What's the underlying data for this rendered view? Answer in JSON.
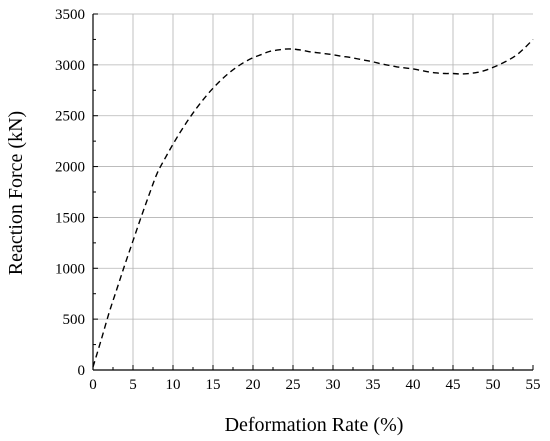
{
  "chart_data": {
    "type": "line",
    "xlabel": "Deformation Rate (%)",
    "ylabel": "Reaction Force (kN)",
    "xlim": [
      0,
      55
    ],
    "ylim": [
      0,
      3500
    ],
    "x_ticks": [
      0,
      5,
      10,
      15,
      20,
      25,
      30,
      35,
      40,
      45,
      50,
      55
    ],
    "y_ticks": [
      0,
      500,
      1000,
      1500,
      2000,
      2500,
      3000,
      3500
    ],
    "x_tick_labels": [
      "0",
      "5",
      "10",
      "15",
      "20",
      "25",
      "30",
      "35",
      "40",
      "45",
      "50",
      "55"
    ],
    "y_tick_labels": [
      "0",
      "500",
      "1000",
      "1500",
      "2000",
      "2500",
      "3000",
      "3500"
    ],
    "grid": true,
    "line_style": "dashed",
    "line_color": "#000000",
    "series": [
      {
        "x": [
          0,
          1,
          2,
          3,
          4,
          5,
          6,
          7,
          8,
          9,
          10,
          11,
          12,
          13,
          14,
          15,
          16,
          17,
          18,
          19,
          20,
          21,
          22,
          23,
          24,
          25,
          26,
          27,
          28,
          29,
          30,
          31,
          32,
          33,
          34,
          35,
          36,
          37,
          38,
          39,
          40,
          41,
          42,
          43,
          44,
          45,
          46,
          47,
          48,
          49,
          50,
          51,
          52,
          53,
          54,
          55
        ],
        "y": [
          30,
          290,
          560,
          800,
          1040,
          1270,
          1500,
          1720,
          1930,
          2080,
          2220,
          2350,
          2470,
          2580,
          2680,
          2770,
          2850,
          2920,
          2980,
          3030,
          3070,
          3100,
          3130,
          3145,
          3155,
          3155,
          3145,
          3130,
          3120,
          3110,
          3100,
          3085,
          3075,
          3060,
          3045,
          3030,
          3010,
          2995,
          2980,
          2970,
          2960,
          2945,
          2930,
          2920,
          2915,
          2915,
          2910,
          2915,
          2925,
          2945,
          2975,
          3010,
          3050,
          3100,
          3170,
          3250
        ]
      }
    ]
  }
}
